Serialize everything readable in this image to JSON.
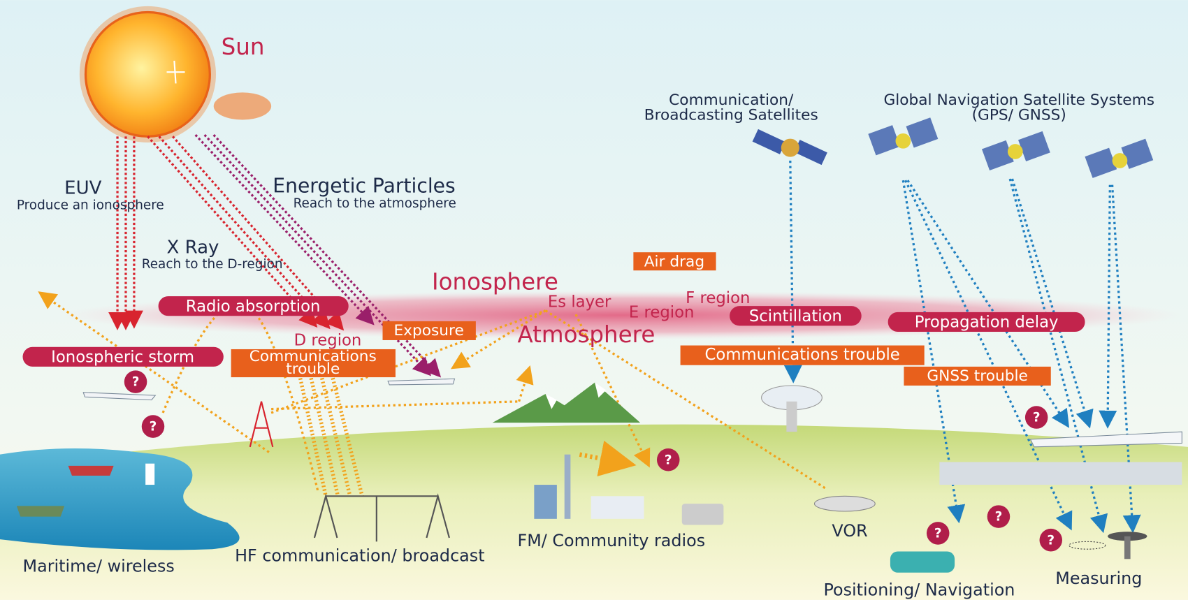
{
  "sun": "Sun",
  "sources": {
    "euv": {
      "title": "EUV",
      "note": "Produce an ionosphere"
    },
    "xray": {
      "title": "X Ray",
      "note": "Reach to the D-region"
    },
    "particles": {
      "title": "Energetic Particles",
      "note": "Reach to the atmosphere"
    }
  },
  "satellites": {
    "communication": [
      "Communication/",
      "Broadcasting Satellites"
    ],
    "gnss": [
      "Global Navigation Satellite Systems",
      "(GPS/ GNSS)"
    ]
  },
  "layers": {
    "ionosphere": "Ionosphere",
    "atmosphere": "Atmosphere",
    "es_layer": "Es layer",
    "f_region": "F region",
    "e_region": "E region",
    "d_region": "D region"
  },
  "effects": {
    "air_drag": "Air drag",
    "radio_absorption": "Radio absorption",
    "exposure": "Exposure",
    "ionospheric_storm": "Ionospheric storm",
    "hf_trouble": [
      "Communications",
      "trouble"
    ],
    "scintillation": "Scintillation",
    "propagation_delay": "Propagation delay",
    "satellite_trouble": "Communications trouble",
    "gnss_trouble": "GNSS trouble"
  },
  "question_mark": "?",
  "ground": {
    "maritime": "Maritime/ wireless",
    "hf": "HF communication/ broadcast",
    "fm": "FM/ Community radios",
    "vor": "VOR",
    "positioning": "Positioning/ Navigation",
    "measuring": "Measuring"
  }
}
